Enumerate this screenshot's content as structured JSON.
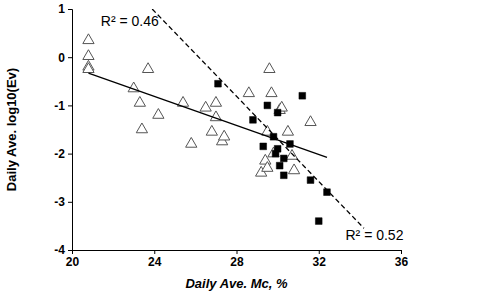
{
  "chart_data": {
    "type": "scatter",
    "xlabel": "Daily Ave. Mc, %",
    "ylabel": "Daily Ave. log10(Ev)",
    "xlim": [
      20,
      36
    ],
    "ylim": [
      -4,
      1
    ],
    "xticks": [
      20,
      24,
      28,
      32,
      36
    ],
    "yticks": [
      -4,
      -3,
      -2,
      -1,
      0,
      1
    ],
    "grid": false,
    "series": [
      {
        "type": "scatter",
        "marker": "triangle-open",
        "color": "#555555",
        "x": [
          20.8,
          20.8,
          20.8,
          20.8,
          23.0,
          23.3,
          23.4,
          23.7,
          24.2,
          25.4,
          25.8,
          26.5,
          26.8,
          27.0,
          27.0,
          27.3,
          27.4,
          28.6,
          29.2,
          29.4,
          29.5,
          29.5,
          29.6,
          29.7,
          29.8,
          30.1,
          30.2,
          30.5,
          30.7,
          30.8,
          31.6
        ],
        "values": [
          0.35,
          0.02,
          -0.2,
          -0.25,
          -0.65,
          -0.95,
          -1.5,
          -0.25,
          -1.2,
          -0.95,
          -1.8,
          -1.05,
          -1.55,
          -1.25,
          -0.95,
          -1.75,
          -1.65,
          -0.75,
          -2.4,
          -2.15,
          -2.3,
          -1.55,
          -0.25,
          -0.75,
          -2.0,
          -1.1,
          -1.05,
          -1.55,
          -2.05,
          -2.35,
          -1.35
        ]
      },
      {
        "type": "scatter",
        "marker": "square",
        "color": "#000000",
        "x": [
          27.1,
          28.8,
          29.3,
          29.5,
          29.8,
          29.9,
          30.0,
          30.0,
          30.1,
          30.3,
          30.3,
          30.6,
          31.2,
          31.6,
          32.0,
          32.4
        ],
        "values": [
          -0.55,
          -1.3,
          -1.85,
          -1.0,
          -1.65,
          -2.0,
          -1.15,
          -1.9,
          -2.25,
          -2.1,
          -2.45,
          -1.8,
          -0.8,
          -2.55,
          -3.4,
          -2.8
        ]
      },
      {
        "type": "line",
        "line_style": "solid",
        "color": "#000000",
        "x": [
          20.8,
          32.4
        ],
        "values": [
          -0.33,
          -2.08
        ]
      },
      {
        "type": "line",
        "line_style": "dashed",
        "color": "#000000",
        "x": [
          23.9,
          34.2
        ],
        "values": [
          1.0,
          -3.55
        ]
      }
    ],
    "annotations": [
      {
        "text": "R² = 0.46",
        "x": 21.4,
        "y": 0.72
      },
      {
        "text": "R² = 0.52",
        "x": 33.3,
        "y": -3.72
      }
    ]
  }
}
